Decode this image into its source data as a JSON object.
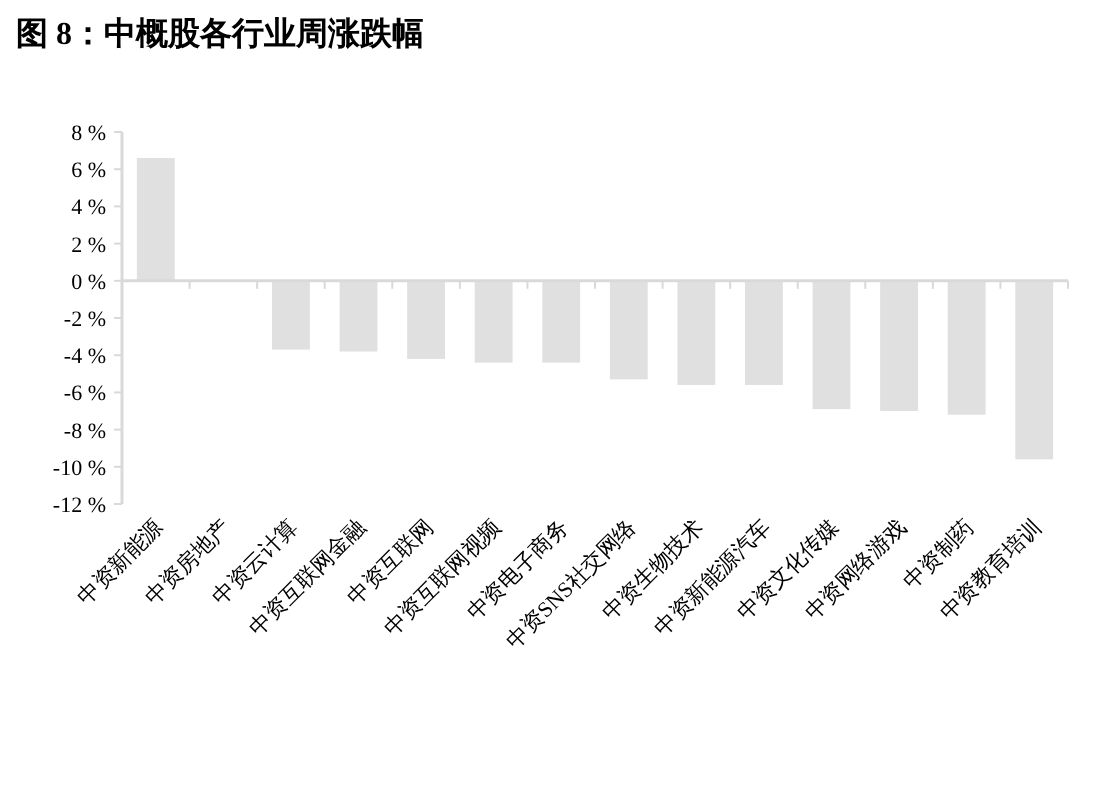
{
  "chart_data": {
    "type": "bar",
    "title": "图 8：中概股各行业周涨跌幅",
    "categories": [
      "中资新能源",
      "中资房地产",
      "中资云计算",
      "中资互联网金融",
      "中资互联网",
      "中资互联网视频",
      "中资电子商务",
      "中资SNS社交网络",
      "中资生物技术",
      "中资新能源汽车",
      "中资文化传媒",
      "中资网络游戏",
      "中资制药",
      "中资教育培训"
    ],
    "values": [
      6.6,
      0,
      -3.7,
      -3.8,
      -4.2,
      -4.4,
      -4.4,
      -5.3,
      -5.6,
      -5.6,
      -6.9,
      -7.0,
      -7.2,
      -9.6
    ],
    "color": "#e0e0e0",
    "ylim": [
      -12,
      8
    ],
    "yticks": [
      {
        "value": 8,
        "label": "8 %"
      },
      {
        "value": 6,
        "label": "6 %"
      },
      {
        "value": 4,
        "label": "4 %"
      },
      {
        "value": 2,
        "label": "2 %"
      },
      {
        "value": 0,
        "label": "0 %"
      },
      {
        "value": -2,
        "label": "-2 %"
      },
      {
        "value": -4,
        "label": "-4 %"
      },
      {
        "value": -6,
        "label": "-6 %"
      },
      {
        "value": -8,
        "label": "-8 %"
      },
      {
        "value": -10,
        "label": "-10 %"
      },
      {
        "value": -12,
        "label": "-12 %"
      }
    ]
  }
}
